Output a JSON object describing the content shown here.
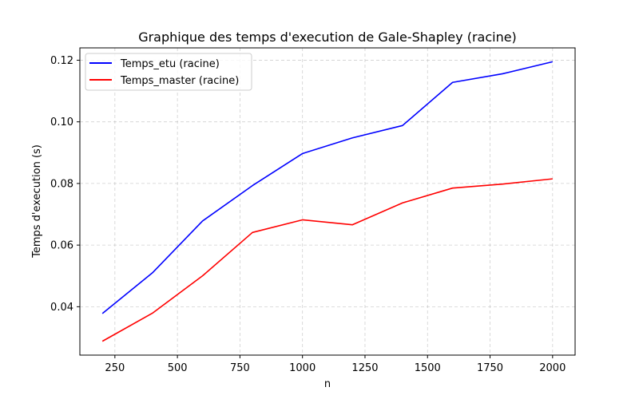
{
  "chart_data": {
    "type": "line",
    "title": "Graphique des temps d'execution de Gale-Shapley (racine)",
    "xlabel": "n",
    "ylabel": "Temps d'execution (s)",
    "x": [
      200,
      400,
      600,
      800,
      1000,
      1200,
      1400,
      1600,
      1800,
      2000
    ],
    "series": [
      {
        "name": "Temps_etu (racine)",
        "color": "#0000ff",
        "values": [
          0.0378,
          0.051,
          0.0678,
          0.0793,
          0.0897,
          0.0948,
          0.0988,
          0.1128,
          0.1156,
          0.1195
        ]
      },
      {
        "name": "Temps_master (racine)",
        "color": "#ff0000",
        "values": [
          0.0288,
          0.0379,
          0.05,
          0.0641,
          0.0682,
          0.0666,
          0.0737,
          0.0785,
          0.0798,
          0.0815
        ]
      }
    ],
    "xlim": [
      110,
      2090
    ],
    "ylim": [
      0.0243,
      0.124
    ],
    "xticks": [
      250,
      500,
      750,
      1000,
      1250,
      1500,
      1750,
      2000
    ],
    "xtick_labels": [
      "250",
      "500",
      "750",
      "1000",
      "1250",
      "1500",
      "1750",
      "2000"
    ],
    "yticks": [
      0.04,
      0.06,
      0.08,
      0.1,
      0.12
    ],
    "ytick_labels": [
      "0.04",
      "0.06",
      "0.08",
      "0.10",
      "0.12"
    ],
    "grid": true,
    "grid_style": "dashed",
    "legend_position": "upper-left"
  }
}
